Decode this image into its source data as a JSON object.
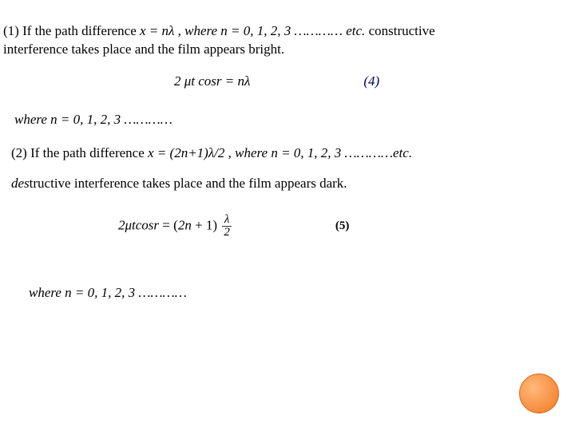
{
  "para1_prefix": "(1) If the path difference ",
  "para1_eq": "x = nλ , where n = 0, 1, 2, 3 ………… etc.",
  "para1_mid": " constructive",
  "para1_line2": "interference takes place and the film appears bright.",
  "eq4_text": "2 μt cosr = nλ",
  "eq4_num": "(4)",
  "where1": "where n = 0, 1, 2, 3 …………",
  "para2_prefix": "(2) If the path difference ",
  "para2_eq": "x = (2n+1)λ/2 , where n = 0, 1, 2, 3 …………etc.",
  "para3_italic_de": "des",
  "para3_rest": "tructive interference takes place and the film appears dark.",
  "eq5_lhs": "2μtcosr",
  "eq5_eq": " = ",
  "eq5_paren_open": "(",
  "eq5_2n": "2n",
  "eq5_op": " + ",
  "eq5_one": "1",
  "eq5_paren_close": ")",
  "eq5_frac_num": "λ",
  "eq5_frac_den": "2",
  "eq5_num": "(5)",
  "where2": "where n = 0, 1, 2, 3 …………",
  "colors": {
    "eq4_num_color": "#000066",
    "circle_fill": "#f68b3c"
  }
}
